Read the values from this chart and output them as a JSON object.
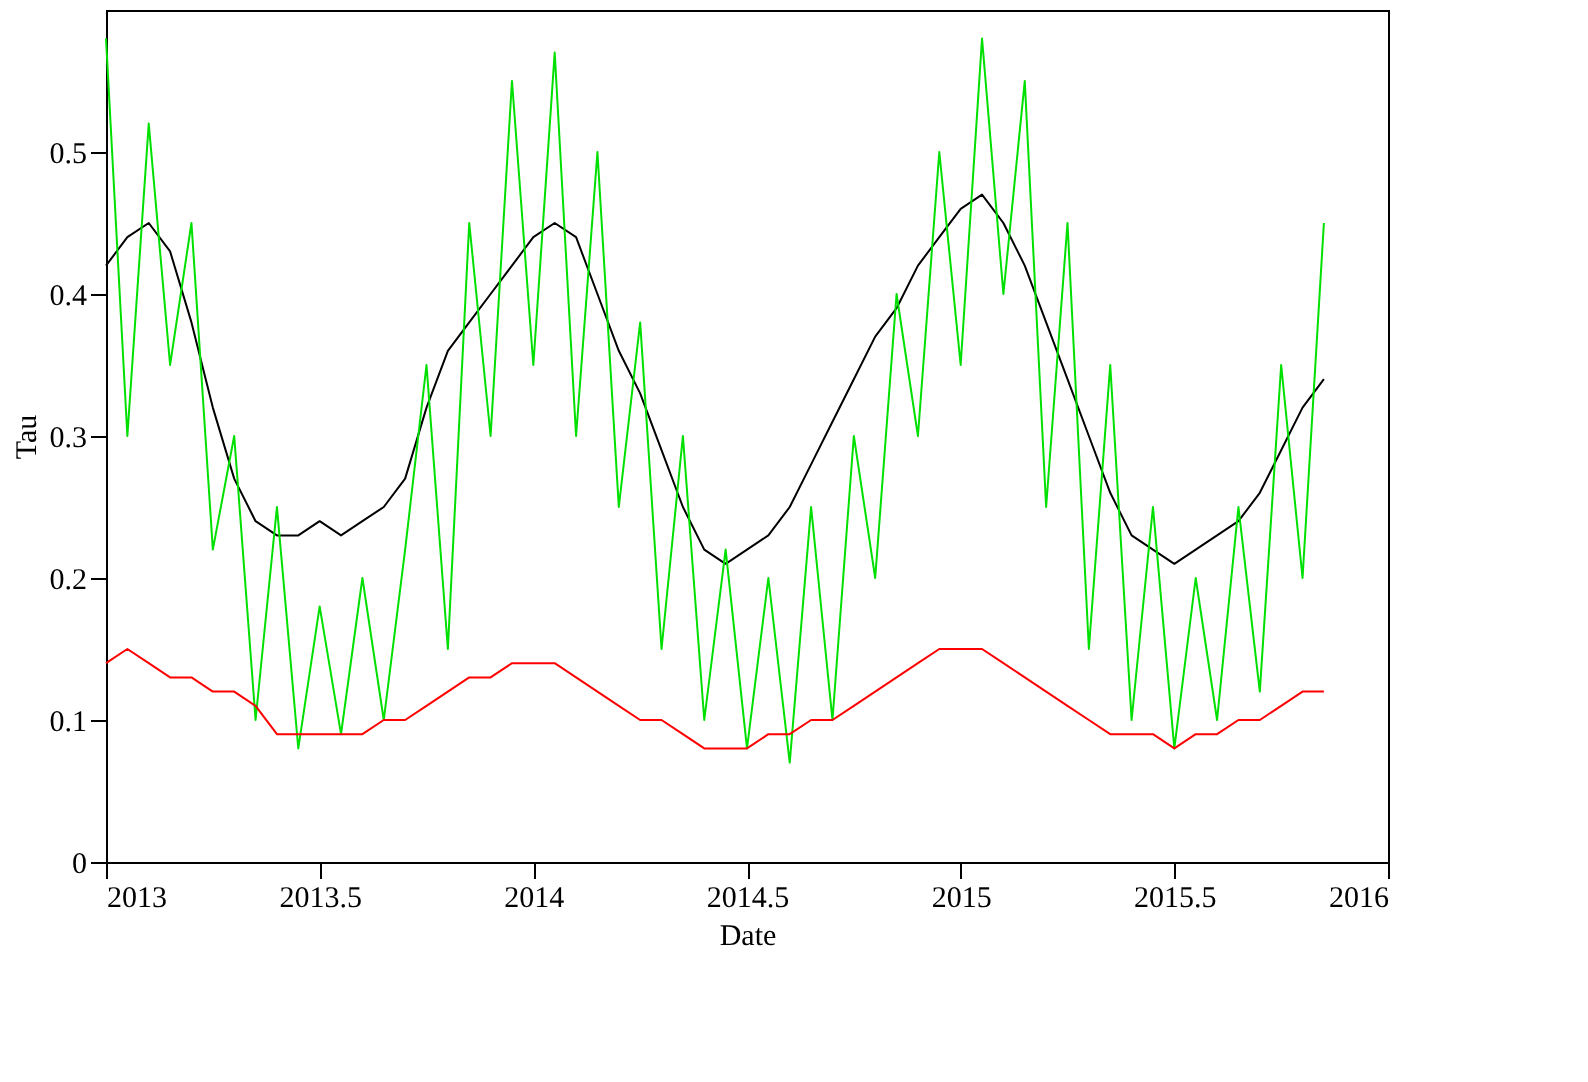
{
  "chart_data": {
    "type": "line",
    "xlabel": "Date",
    "ylabel": "Tau",
    "x": [
      2013,
      2013.05,
      2013.1,
      2013.15,
      2013.2,
      2013.25,
      2013.3,
      2013.35,
      2013.4,
      2013.45,
      2013.5,
      2013.55,
      2013.6,
      2013.65,
      2013.7,
      2013.75,
      2013.8,
      2013.85,
      2013.9,
      2013.95,
      2014,
      2014.05,
      2014.1,
      2014.15,
      2014.2,
      2014.25,
      2014.3,
      2014.35,
      2014.4,
      2014.45,
      2014.5,
      2014.55,
      2014.6,
      2014.65,
      2014.7,
      2014.75,
      2014.8,
      2014.85,
      2014.9,
      2014.95,
      2015,
      2015.05,
      2015.1,
      2015.15,
      2015.2,
      2015.25,
      2015.3,
      2015.35,
      2015.4,
      2015.45,
      2015.5,
      2015.55,
      2015.6,
      2015.65,
      2015.7,
      2015.75,
      2015.8,
      2015.85
    ],
    "series": [
      {
        "color": "#000000",
        "values": [
          0.42,
          0.44,
          0.45,
          0.43,
          0.38,
          0.32,
          0.27,
          0.24,
          0.23,
          0.23,
          0.24,
          0.23,
          0.24,
          0.25,
          0.27,
          0.32,
          0.36,
          0.38,
          0.4,
          0.42,
          0.44,
          0.45,
          0.44,
          0.4,
          0.36,
          0.33,
          0.29,
          0.25,
          0.22,
          0.21,
          0.22,
          0.23,
          0.25,
          0.28,
          0.31,
          0.34,
          0.37,
          0.39,
          0.42,
          0.44,
          0.46,
          0.47,
          0.45,
          0.42,
          0.38,
          0.34,
          0.3,
          0.26,
          0.23,
          0.22,
          0.21,
          0.22,
          0.23,
          0.24,
          0.26,
          0.29,
          0.32,
          0.34
        ]
      },
      {
        "color": "#00e000",
        "values": [
          0.58,
          0.3,
          0.52,
          0.35,
          0.45,
          0.22,
          0.3,
          0.1,
          0.25,
          0.08,
          0.18,
          0.09,
          0.2,
          0.1,
          0.22,
          0.35,
          0.15,
          0.45,
          0.3,
          0.55,
          0.35,
          0.57,
          0.3,
          0.5,
          0.25,
          0.38,
          0.15,
          0.3,
          0.1,
          0.22,
          0.08,
          0.2,
          0.07,
          0.25,
          0.1,
          0.3,
          0.2,
          0.4,
          0.3,
          0.5,
          0.35,
          0.58,
          0.4,
          0.55,
          0.25,
          0.45,
          0.15,
          0.35,
          0.1,
          0.25,
          0.08,
          0.2,
          0.1,
          0.25,
          0.12,
          0.35,
          0.2,
          0.45
        ]
      },
      {
        "color": "#ff0000",
        "values": [
          0.14,
          0.15,
          0.14,
          0.13,
          0.13,
          0.12,
          0.12,
          0.11,
          0.09,
          0.09,
          0.09,
          0.09,
          0.09,
          0.1,
          0.1,
          0.11,
          0.12,
          0.13,
          0.13,
          0.14,
          0.14,
          0.14,
          0.13,
          0.12,
          0.11,
          0.1,
          0.1,
          0.09,
          0.08,
          0.08,
          0.08,
          0.09,
          0.09,
          0.1,
          0.1,
          0.11,
          0.12,
          0.13,
          0.14,
          0.15,
          0.15,
          0.15,
          0.14,
          0.13,
          0.12,
          0.11,
          0.1,
          0.09,
          0.09,
          0.09,
          0.08,
          0.09,
          0.09,
          0.1,
          0.1,
          0.11,
          0.12,
          0.12
        ]
      }
    ],
    "xlim": [
      2013,
      2016
    ],
    "xticks": [
      2013,
      2013.5,
      2014,
      2014.5,
      2015,
      2015.5,
      2016
    ],
    "ylim": [
      0,
      0.6
    ],
    "yticks": [
      0,
      0.1,
      0.2,
      0.3,
      0.4,
      0.5
    ],
    "grid": false,
    "legend": false,
    "marker": "none",
    "line_style": "solid"
  }
}
